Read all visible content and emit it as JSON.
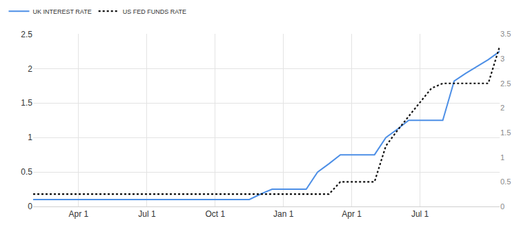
{
  "chart_data": {
    "type": "line",
    "categories": [
      null,
      null,
      null,
      null,
      "Apr 1",
      null,
      null,
      null,
      null,
      null,
      "Jul 1",
      null,
      null,
      null,
      null,
      null,
      "Oct 1",
      null,
      null,
      null,
      null,
      null,
      "Jan 1",
      null,
      null,
      null,
      null,
      null,
      "Apr 1",
      null,
      null,
      null,
      null,
      null,
      "Jul 1",
      null,
      null,
      null,
      null,
      null,
      null,
      null
    ],
    "series": [
      {
        "name": "UK INTEREST RATE",
        "color": "#4d8fe6",
        "line_style": "solid",
        "axis": "y",
        "values": [
          0.1,
          0.1,
          0.1,
          0.1,
          0.1,
          0.1,
          0.1,
          0.1,
          0.1,
          0.1,
          0.1,
          0.1,
          0.1,
          0.1,
          0.1,
          0.1,
          0.1,
          0.1,
          0.1,
          0.1,
          0.18,
          0.25,
          0.25,
          0.25,
          0.25,
          0.5,
          0.62,
          0.75,
          0.75,
          0.75,
          0.75,
          1.0,
          1.12,
          1.25,
          1.25,
          1.25,
          1.25,
          1.82,
          1.93,
          2.03,
          2.13,
          2.25
        ]
      },
      {
        "name": "US FED FUNDS RATE",
        "color": "#111111",
        "line_style": "dotted",
        "axis": "y2",
        "values": [
          0.25,
          0.25,
          0.25,
          0.25,
          0.25,
          0.25,
          0.25,
          0.25,
          0.25,
          0.25,
          0.25,
          0.25,
          0.25,
          0.25,
          0.25,
          0.25,
          0.25,
          0.25,
          0.25,
          0.25,
          0.25,
          0.25,
          0.25,
          0.25,
          0.25,
          0.25,
          0.25,
          0.5,
          0.5,
          0.5,
          0.5,
          1.23,
          1.54,
          1.83,
          2.12,
          2.4,
          2.5,
          2.5,
          2.5,
          2.5,
          2.5,
          3.25
        ]
      }
    ],
    "ylim": [
      0,
      2.5
    ],
    "yticks": [
      0,
      0.5,
      1,
      1.5,
      2,
      2.5
    ],
    "y2lim": [
      0,
      3.5
    ],
    "y2ticks": [
      0,
      0.5,
      1,
      1.5,
      2,
      2.5,
      3,
      3.5
    ],
    "grid": true,
    "legend": "top left"
  }
}
